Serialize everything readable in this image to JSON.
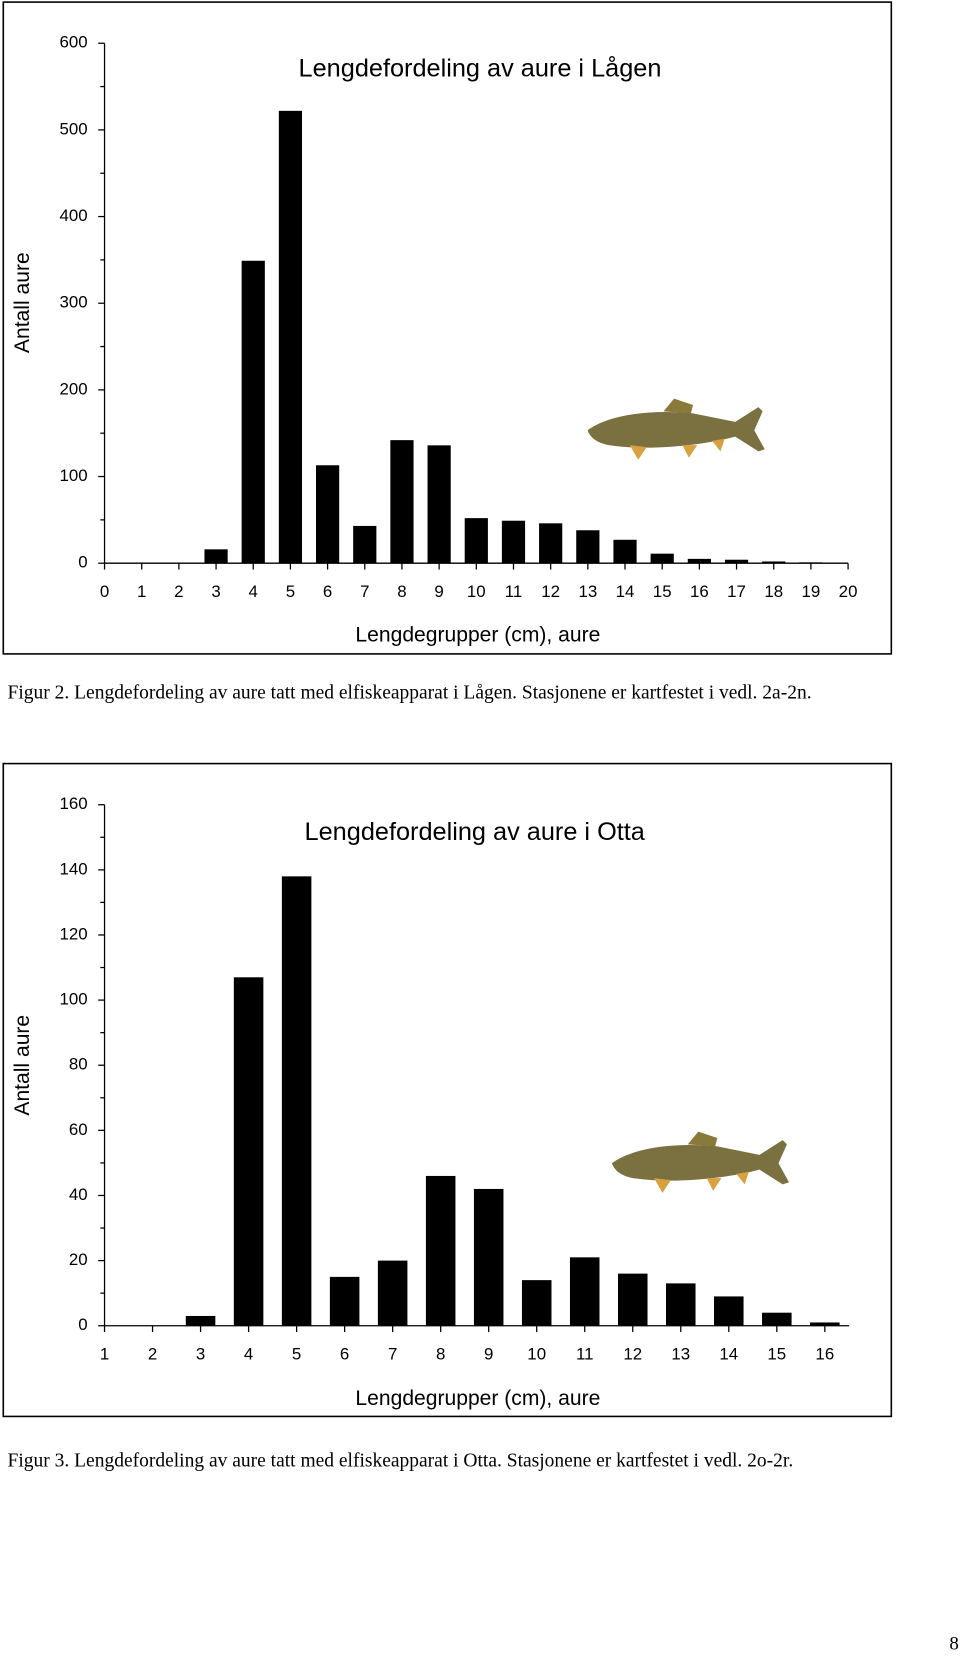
{
  "chart_data": [
    {
      "type": "bar",
      "title": "Lengdefordeling av aure i Lågen",
      "x_label": "Lengdegrupper (cm), aure",
      "y_label": "Antall aure",
      "categories": [
        "0",
        "1",
        "2",
        "3",
        "4",
        "5",
        "6",
        "7",
        "8",
        "9",
        "10",
        "11",
        "12",
        "13",
        "14",
        "15",
        "16",
        "17",
        "18",
        "19",
        "20"
      ],
      "values": [
        0,
        0,
        0,
        16,
        349,
        522,
        113,
        43,
        142,
        136,
        52,
        49,
        46,
        38,
        27,
        11,
        5,
        4,
        2,
        1,
        0
      ],
      "color": "#000000",
      "ylim": [
        0,
        600
      ],
      "yticks": [
        0,
        100,
        200,
        300,
        400,
        500,
        600
      ],
      "caption": "Figur 2. Lengdefordeling av aure tatt med elfiskeapparat i Lågen. Stasjonene er kartfestet i vedl. 2a-2n."
    },
    {
      "type": "bar",
      "title": "Lengdefordeling av aure i Otta",
      "x_label": "Lengdegrupper (cm), aure",
      "y_label": "Antall aure",
      "categories": [
        "1",
        "2",
        "3",
        "4",
        "5",
        "6",
        "7",
        "8",
        "9",
        "10",
        "11",
        "12",
        "13",
        "14",
        "15",
        "16"
      ],
      "values": [
        0,
        0,
        3,
        107,
        138,
        15,
        20,
        46,
        42,
        14,
        21,
        16,
        13,
        9,
        4,
        1
      ],
      "color": "#000000",
      "ylim": [
        0,
        160
      ],
      "yticks": [
        0,
        20,
        40,
        60,
        80,
        100,
        120,
        140,
        160
      ],
      "caption": "Figur 3. Lengdefordeling av aure tatt med elfiskeapparat i Otta. Stasjonene er kartfestet i vedl. 2o-2r."
    }
  ],
  "page_number": "8"
}
